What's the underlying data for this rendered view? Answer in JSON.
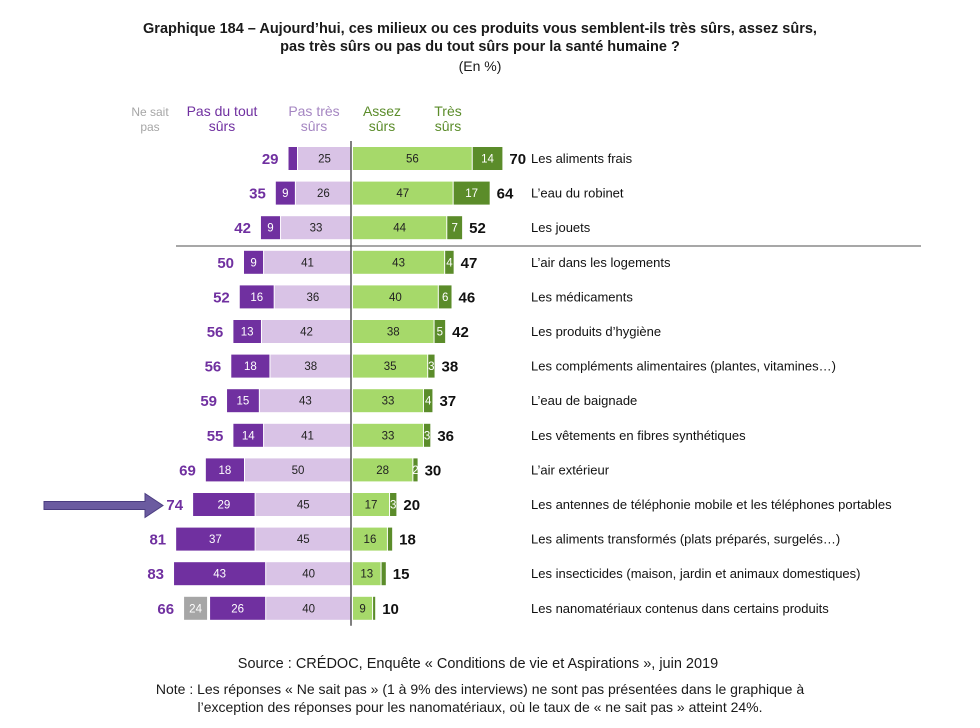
{
  "title": {
    "line1": "Graphique 184 – Aujourd’hui, ces milieux ou ces produits vous semblent-ils très sûrs, assez sûrs,",
    "line2": "pas très sûrs ou pas du tout sûrs pour la santé humaine ?",
    "unit": "(En %)"
  },
  "colors": {
    "pas_du_tout_surs": "#7030a0",
    "pas_tres_surs": "#d9c3e6",
    "assez_surs": "#a6d96a",
    "tres_surs": "#5b8c2a",
    "ne_sait_pas": "#a6a6a6",
    "total_negative": "#7030a0",
    "total_positive": "#111111",
    "arrow": "#6b5ba0"
  },
  "chart_data": {
    "type": "bar",
    "orientation": "horizontal",
    "stacked": "diverging",
    "legend": [
      {
        "key": "ne_sait_pas",
        "label_lines": [
          "Ne sait",
          "pas"
        ]
      },
      {
        "key": "pas_du_tout_surs",
        "label_lines": [
          "Pas du tout",
          "sûrs"
        ]
      },
      {
        "key": "pas_tres_surs",
        "label_lines": [
          "Pas très",
          "sûrs"
        ]
      },
      {
        "key": "assez_surs",
        "label_lines": [
          "Assez",
          "sûrs"
        ]
      },
      {
        "key": "tres_surs",
        "label_lines": [
          "Très",
          "sûrs"
        ]
      }
    ],
    "categories": [
      "Les aliments frais",
      "L’eau du robinet",
      "Les jouets",
      "L’air dans les logements",
      "Les médicaments",
      "Les produits d’hygiène",
      "Les compléments alimentaires  (plantes, vitamines…)",
      "L’eau de baignade",
      "Les vêtements en fibres synthétiques",
      "L’air extérieur",
      "Les antennes de téléphonie mobile et les téléphones portables",
      "Les aliments  transformés (plats préparés, surgelés…)",
      "Les insecticides (maison, jardin et animaux domestiques)",
      "Les nanomatériaux contenus dans certains produits"
    ],
    "series": [
      {
        "key": "ne_sait_pas",
        "name": "Ne sait pas",
        "values": [
          null,
          null,
          null,
          null,
          null,
          null,
          null,
          null,
          null,
          null,
          null,
          null,
          null,
          24
        ]
      },
      {
        "key": "pas_du_tout_surs",
        "name": "Pas du tout sûrs",
        "values": [
          4,
          9,
          9,
          9,
          16,
          13,
          18,
          15,
          14,
          18,
          29,
          37,
          43,
          26
        ],
        "labels": [
          "",
          "9",
          "9",
          "9",
          "16",
          "13",
          "18",
          "15",
          "14",
          "18",
          "29",
          "37",
          "43",
          "26"
        ]
      },
      {
        "key": "pas_tres_surs",
        "name": "Pas très sûrs",
        "values": [
          25,
          26,
          33,
          41,
          36,
          42,
          38,
          43,
          41,
          50,
          45,
          45,
          40,
          40
        ],
        "labels": [
          "25",
          "26",
          "33",
          "41",
          "36",
          "42",
          "38",
          "43",
          "41",
          "50",
          "45",
          "45",
          "40",
          "40"
        ]
      },
      {
        "key": "assez_surs",
        "name": "Assez sûrs",
        "values": [
          56,
          47,
          44,
          43,
          40,
          38,
          35,
          33,
          33,
          28,
          17,
          16,
          13,
          9
        ],
        "labels": [
          "56",
          "47",
          "44",
          "43",
          "40",
          "38",
          "35",
          "33",
          "33",
          "28",
          "17",
          "16",
          "13",
          "9"
        ]
      },
      {
        "key": "tres_surs",
        "name": "Très sûrs",
        "values": [
          14,
          17,
          7,
          4,
          6,
          5,
          3,
          4,
          3,
          2,
          3,
          2,
          2,
          1
        ],
        "labels": [
          "14",
          "17",
          "7",
          "4",
          "6",
          "5",
          "3",
          "4",
          "3",
          "2",
          "3",
          "",
          "",
          ""
        ]
      }
    ],
    "totals_negative": [
      "29",
      "35",
      "42",
      "50",
      "52",
      "56",
      "56",
      "59",
      "55",
      "69",
      "74",
      "81",
      "83",
      "66"
    ],
    "totals_positive": [
      "70",
      "64",
      "52",
      "47",
      "46",
      "42",
      "38",
      "37",
      "36",
      "30",
      "20",
      "18",
      "15",
      "10"
    ],
    "separator_after_index": 2,
    "highlighted_index": 10
  },
  "source": "Source : CRÉDOC, Enquête « Conditions de vie et Aspirations », juin 2019",
  "note": {
    "line1": "Note : Les réponses « Ne sait pas » (1 à 9% des interviews) ne sont pas présentées dans le graphique à",
    "line2": "l’exception des réponses pour les nanomatériaux, où le taux de « ne sait pas » atteint 24%."
  }
}
